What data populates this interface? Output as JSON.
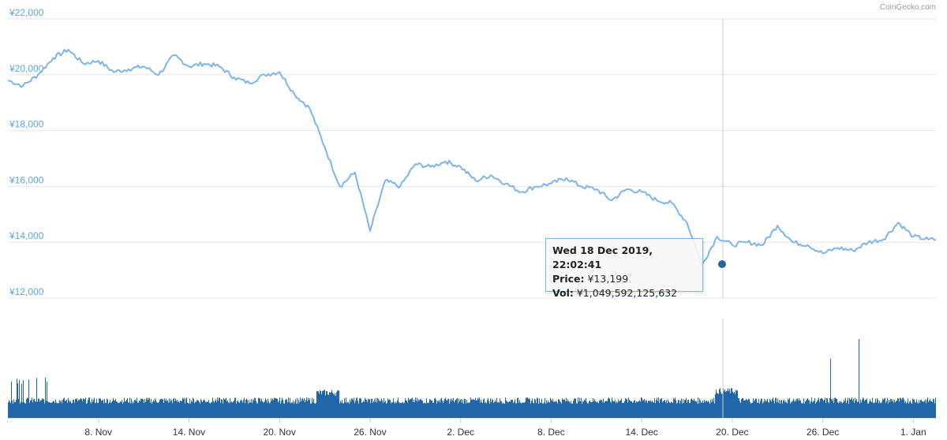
{
  "credit": "CoinGecko.com",
  "tooltip": {
    "date": "Wed 18 Dec 2019, 22:02:41",
    "price_label": "Price:",
    "price_value": "¥13,199",
    "vol_label": "Vol:",
    "vol_value": "¥1,049,592,125,632"
  },
  "chart_data": {
    "type": "line",
    "y_ticks": [
      "¥22,000",
      "¥20,000",
      "¥18,000",
      "¥16,000",
      "¥14,000",
      "¥12,000"
    ],
    "x_ticks": [
      "8. Nov",
      "14. Nov",
      "20. Nov",
      "26. Nov",
      "2. Dec",
      "8. Dec",
      "14. Dec",
      "20. Dec",
      "26. Dec",
      "1. Jan"
    ],
    "ylim": [
      12000,
      22000
    ],
    "series": [
      {
        "type": "line",
        "color": "#7cb5ec",
        "x": [
          "2019-11-02",
          "2019-11-03",
          "2019-11-04",
          "2019-11-05",
          "2019-11-06",
          "2019-11-07",
          "2019-11-08",
          "2019-11-09",
          "2019-11-10",
          "2019-11-11",
          "2019-11-12",
          "2019-11-13",
          "2019-11-14",
          "2019-11-15",
          "2019-11-16",
          "2019-11-17",
          "2019-11-18",
          "2019-11-19",
          "2019-11-20",
          "2019-11-21",
          "2019-11-22",
          "2019-11-23",
          "2019-11-24",
          "2019-11-25",
          "2019-11-26",
          "2019-11-27",
          "2019-11-28",
          "2019-11-29",
          "2019-11-30",
          "2019-12-01",
          "2019-12-02",
          "2019-12-03",
          "2019-12-04",
          "2019-12-05",
          "2019-12-06",
          "2019-12-07",
          "2019-12-08",
          "2019-12-09",
          "2019-12-10",
          "2019-12-11",
          "2019-12-12",
          "2019-12-13",
          "2019-12-14",
          "2019-12-15",
          "2019-12-16",
          "2019-12-17",
          "2019-12-18",
          "2019-12-19",
          "2019-12-20",
          "2019-12-21",
          "2019-12-22",
          "2019-12-23",
          "2019-12-24",
          "2019-12-25",
          "2019-12-26",
          "2019-12-27",
          "2019-12-28",
          "2019-12-29",
          "2019-12-30",
          "2019-12-31",
          "2020-01-01",
          "2020-01-02"
        ],
        "values": [
          19800,
          19600,
          20000,
          20600,
          20900,
          20400,
          20500,
          20100,
          20200,
          20300,
          20000,
          20700,
          20300,
          20400,
          20300,
          19900,
          19700,
          20000,
          20100,
          19300,
          18800,
          17400,
          16000,
          16500,
          14400,
          16200,
          16000,
          16800,
          16700,
          16900,
          16700,
          16200,
          16400,
          16100,
          15800,
          16000,
          16100,
          16300,
          16000,
          15900,
          15500,
          15900,
          15800,
          15500,
          15400,
          14700,
          13199,
          14200,
          13900,
          14000,
          13900,
          14600,
          14000,
          13900,
          13600,
          13800,
          13700,
          14000,
          14100,
          14700,
          14200,
          14100
        ]
      },
      {
        "type": "bar",
        "name": "Vol",
        "color": "#2166a8"
      }
    ]
  }
}
